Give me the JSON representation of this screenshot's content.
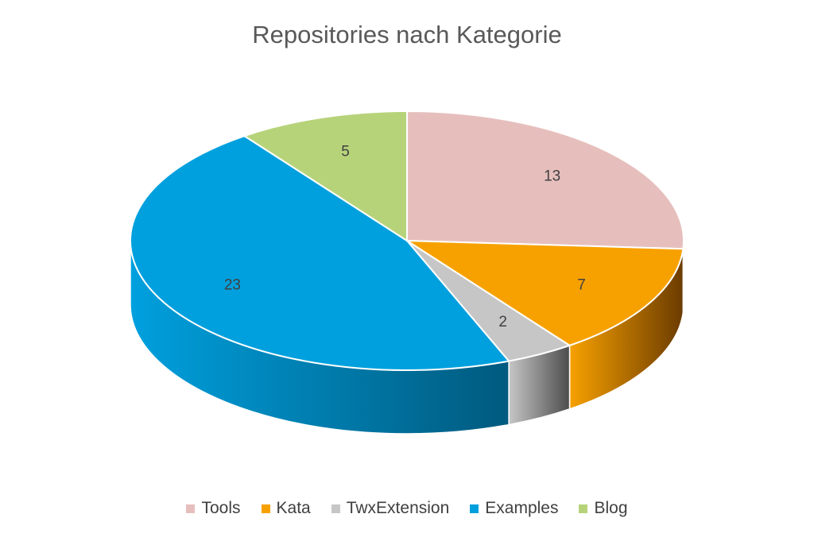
{
  "chart_data": {
    "type": "pie",
    "title": "Repositories nach Kategorie",
    "categories": [
      "Tools",
      "Kata",
      "TwxExtension",
      "Examples",
      "Blog"
    ],
    "values": [
      13,
      7,
      2,
      23,
      5
    ],
    "colors": [
      "#E6BFBD",
      "#F7A100",
      "#C6C6C6",
      "#00A0DE",
      "#B7D37A"
    ],
    "side_colors": [
      "#8f6f6e",
      "#6b3b00",
      "#4d4d4d",
      "#005a7e",
      "#6d8a3a"
    ],
    "legend_position": "bottom",
    "three_d": true
  }
}
